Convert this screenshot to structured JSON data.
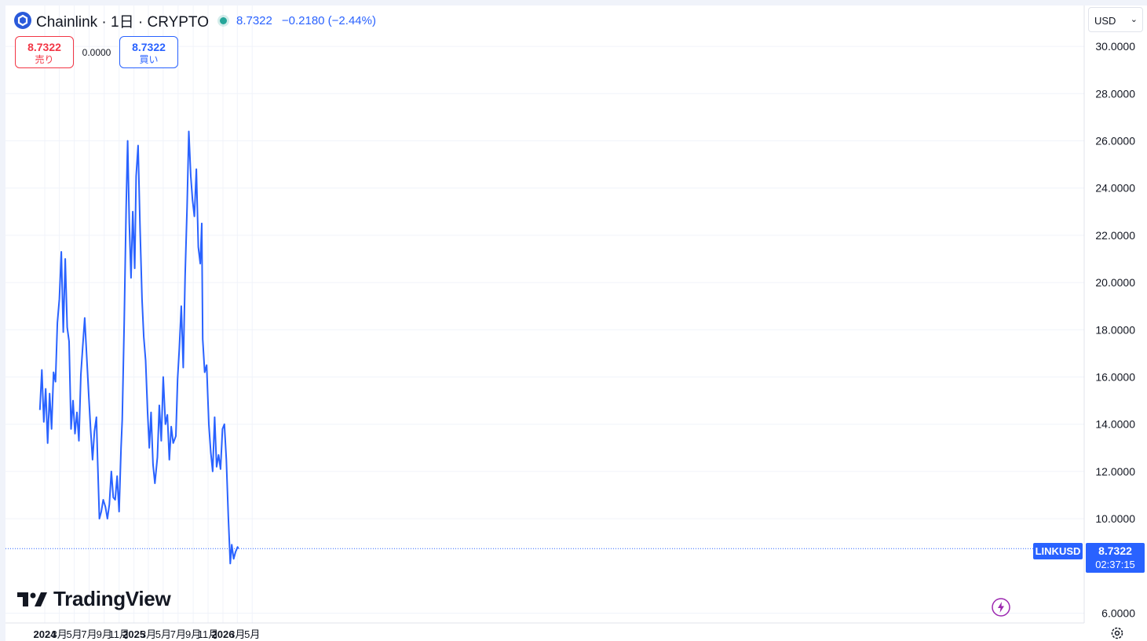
{
  "header": {
    "symbol_title": "Chainlink · 1日 · CRYPTO",
    "last_price": "8.7322",
    "change": "−0.2180 (−2.44%)",
    "logo_icon": "chainlink-logo-icon",
    "status_color": "#26a69a"
  },
  "trade": {
    "sell_price": "8.7322",
    "sell_label": "売り",
    "spread": "0.0000",
    "buy_price": "8.7322",
    "buy_label": "買い"
  },
  "currency": {
    "selected": "USD"
  },
  "watermark": {
    "text": "TradingView"
  },
  "price_tag": {
    "symbol": "LINKUSD",
    "value": "8.7322",
    "countdown": "02:37:15"
  },
  "colors": {
    "line": "#2962ff",
    "sell": "#f23645",
    "buy": "#2962ff",
    "grid": "#f0f3fa"
  },
  "chart_data": {
    "type": "line",
    "series": [
      {
        "x": [
          "2023-12-12",
          "2023-12-20",
          "2023-12-28",
          "2024-01-05",
          "2024-01-13",
          "2024-01-21",
          "2024-01-29",
          "2024-02-06",
          "2024-02-14",
          "2024-02-22",
          "2024-03-01",
          "2024-03-09",
          "2024-03-17",
          "2024-03-25",
          "2024-04-02",
          "2024-04-10",
          "2024-04-18",
          "2024-04-26",
          "2024-05-04",
          "2024-05-12",
          "2024-05-20",
          "2024-05-28",
          "2024-06-05",
          "2024-06-13",
          "2024-06-21",
          "2024-06-29",
          "2024-07-07",
          "2024-07-15",
          "2024-07-23",
          "2024-07-31",
          "2024-08-05",
          "2024-08-12",
          "2024-08-20",
          "2024-08-28",
          "2024-09-06",
          "2024-09-14",
          "2024-09-22",
          "2024-09-30",
          "2024-10-08",
          "2024-10-16",
          "2024-10-24",
          "2024-11-01",
          "2024-11-09",
          "2024-11-14",
          "2024-11-22",
          "2024-11-30",
          "2024-12-06",
          "2024-12-13",
          "2024-12-20",
          "2024-12-27",
          "2025-01-04",
          "2025-01-10",
          "2025-01-18",
          "2025-01-26",
          "2025-02-03",
          "2025-02-10",
          "2025-02-18",
          "2025-02-26",
          "2025-03-05",
          "2025-03-12",
          "2025-03-20",
          "2025-03-28",
          "2025-04-07",
          "2025-04-15",
          "2025-04-23",
          "2025-05-01",
          "2025-05-10",
          "2025-05-18",
          "2025-05-26",
          "2025-06-03",
          "2025-06-11",
          "2025-06-22",
          "2025-06-29",
          "2025-07-06",
          "2025-07-14",
          "2025-07-22",
          "2025-07-30",
          "2025-08-07",
          "2025-08-14",
          "2025-08-22",
          "2025-08-29",
          "2025-09-06",
          "2025-09-14",
          "2025-09-22",
          "2025-09-30",
          "2025-10-06",
          "2025-10-10",
          "2025-10-18",
          "2025-10-26",
          "2025-11-04",
          "2025-11-12",
          "2025-11-20",
          "2025-11-28",
          "2025-12-06",
          "2025-12-14",
          "2025-12-22",
          "2025-12-30",
          "2026-01-07",
          "2026-01-15",
          "2026-01-23",
          "2026-01-31",
          "2026-02-06",
          "2026-02-14",
          "2026-02-22",
          "2026-03-02",
          "2026-03-05"
        ],
        "y": [
          14.6,
          16.3,
          14.1,
          15.5,
          13.2,
          15.3,
          13.8,
          16.2,
          15.8,
          18.3,
          19.3,
          21.3,
          17.9,
          21.0,
          18.1,
          17.5,
          13.8,
          15.0,
          13.6,
          14.5,
          13.3,
          16.1,
          17.3,
          18.5,
          16.9,
          15.3,
          13.8,
          12.5,
          13.7,
          14.3,
          12.4,
          10.0,
          10.3,
          10.8,
          10.5,
          10.0,
          10.6,
          12.0,
          10.9,
          10.8,
          11.8,
          10.3,
          13.0,
          14.2,
          18.3,
          23.2,
          26.0,
          22.5,
          20.2,
          23.0,
          20.6,
          24.5,
          25.8,
          22.3,
          19.3,
          17.7,
          16.7,
          14.5,
          13.0,
          14.5,
          12.3,
          11.5,
          12.6,
          14.8,
          13.3,
          16.0,
          14.0,
          14.4,
          12.5,
          13.9,
          13.2,
          13.5,
          15.9,
          17.2,
          19.0,
          16.4,
          20.3,
          23.2,
          26.4,
          24.5,
          23.5,
          22.8,
          24.8,
          21.5,
          20.8,
          22.5,
          17.6,
          16.2,
          16.5,
          14.0,
          12.8,
          12.0,
          14.3,
          12.2,
          12.7,
          12.1,
          13.8,
          14.0,
          12.5,
          10.1,
          8.1,
          8.9,
          8.3,
          8.6,
          8.8,
          8.7322
        ]
      }
    ],
    "yaxis_ticks": [
      "30.0000",
      "28.0000",
      "26.0000",
      "24.0000",
      "22.0000",
      "20.0000",
      "18.0000",
      "16.0000",
      "14.0000",
      "12.0000",
      "10.0000",
      "6.0000"
    ],
    "xaxis_ticks": [
      "2024",
      "3月",
      "5月",
      "7月",
      "9月",
      "11月",
      "2025",
      "3月",
      "5月",
      "7月",
      "9月",
      "11月",
      "2026",
      "3月",
      "5月"
    ],
    "ylim": [
      6,
      30.6
    ],
    "last_value": 8.7322,
    "grid": true
  }
}
